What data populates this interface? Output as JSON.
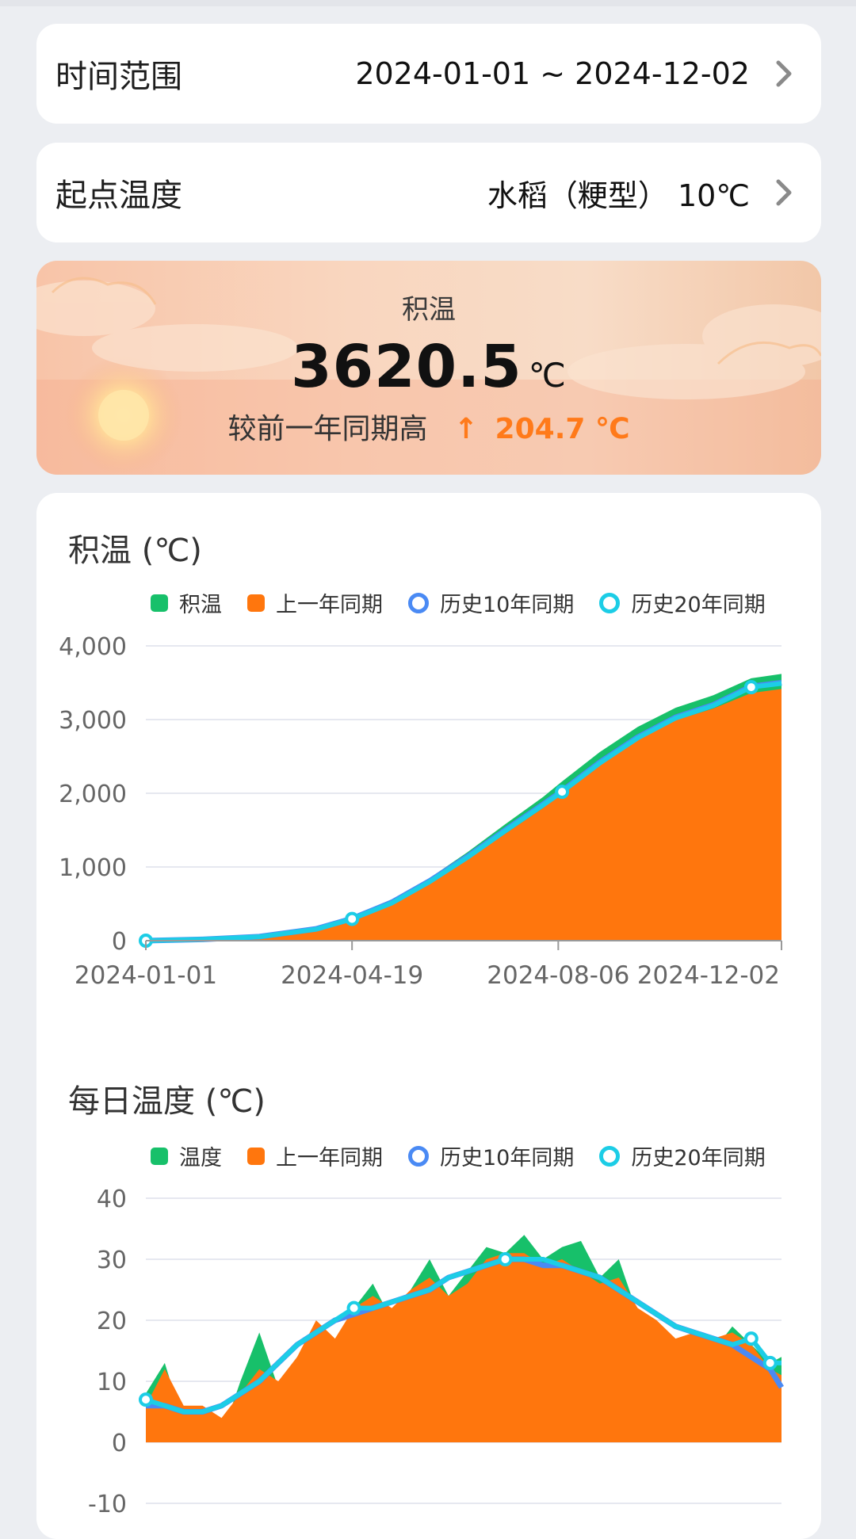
{
  "filters": {
    "time_range": {
      "label": "时间范围",
      "value": "2024-01-01 ~ 2024-12-02"
    },
    "base_temp": {
      "label": "起点温度",
      "value": "水稻（粳型） 10℃"
    }
  },
  "summary": {
    "title": "积温",
    "value": "3620.5",
    "unit": "℃",
    "compare_text": "较前一年同期高",
    "arrow": "↑",
    "delta": "204.7 ℃",
    "accent_color": "#ff7a1a"
  },
  "colors": {
    "green": "#17c06a",
    "orange": "#ff760d",
    "blue10": "#4a8af4",
    "cyan20": "#1ccde6"
  },
  "chart1": {
    "title": "积温 (℃)",
    "legend": [
      "积温",
      "上一年同期",
      "历史10年同期",
      "历史20年同期"
    ]
  },
  "chart2": {
    "title": "每日温度 (℃)",
    "legend": [
      "温度",
      "上一年同期",
      "历史10年同期",
      "历史20年同期"
    ]
  },
  "chart_data": [
    {
      "type": "area",
      "title": "积温 (℃)",
      "x_ticks": [
        "2024-01-01",
        "2024-04-19",
        "2024-08-06",
        "2024-12-02"
      ],
      "x_range": [
        0,
        336
      ],
      "y_ticks": [
        "4,000",
        "3,000",
        "2,000",
        "1,000",
        "0"
      ],
      "ylim": [
        0,
        4000
      ],
      "series": [
        {
          "name": "积温",
          "x": [
            0,
            30,
            60,
            90,
            109,
            130,
            150,
            170,
            190,
            210,
            220,
            240,
            260,
            280,
            300,
            320,
            336
          ],
          "values": [
            0,
            20,
            60,
            170,
            330,
            560,
            850,
            1200,
            1580,
            1950,
            2160,
            2560,
            2900,
            3160,
            3330,
            3560,
            3620
          ]
        },
        {
          "name": "上一年同期",
          "x": [
            0,
            30,
            60,
            90,
            109,
            130,
            150,
            170,
            190,
            210,
            220,
            240,
            260,
            280,
            300,
            320,
            336
          ],
          "values": [
            0,
            15,
            50,
            150,
            280,
            490,
            770,
            1100,
            1450,
            1800,
            2000,
            2380,
            2720,
            2990,
            3150,
            3360,
            3415
          ]
        },
        {
          "name": "历史10年同期",
          "x": [
            0,
            30,
            60,
            90,
            109,
            130,
            150,
            170,
            190,
            210,
            220,
            240,
            260,
            280,
            300,
            320,
            336
          ],
          "values": [
            0,
            18,
            55,
            160,
            300,
            520,
            810,
            1140,
            1500,
            1850,
            2030,
            2420,
            2760,
            3030,
            3200,
            3450,
            3500
          ]
        },
        {
          "name": "历史20年同期",
          "x": [
            0,
            30,
            60,
            90,
            109,
            130,
            150,
            170,
            190,
            210,
            220,
            240,
            260,
            280,
            300,
            320,
            336
          ],
          "values": [
            0,
            17,
            52,
            155,
            295,
            510,
            800,
            1130,
            1490,
            1840,
            2020,
            2410,
            2750,
            3020,
            3190,
            3440,
            3490
          ]
        }
      ],
      "grid": true,
      "legend_position": "top"
    },
    {
      "type": "area",
      "title": "每日温度 (℃)",
      "y_ticks": [
        "40",
        "30",
        "20",
        "10",
        "0",
        "-10"
      ],
      "ylim": [
        -10,
        40
      ],
      "x_range": [
        0,
        336
      ],
      "series": [
        {
          "name": "温度",
          "x": [
            0,
            10,
            20,
            30,
            40,
            50,
            60,
            70,
            80,
            90,
            100,
            110,
            120,
            130,
            140,
            150,
            160,
            170,
            180,
            190,
            200,
            210,
            220,
            230,
            240,
            250,
            260,
            270,
            280,
            290,
            300,
            310,
            320,
            330,
            336
          ],
          "values": [
            8,
            13,
            3,
            5,
            1,
            10,
            18,
            9,
            14,
            18,
            15,
            22,
            26,
            20,
            25,
            30,
            24,
            28,
            32,
            31,
            34,
            30,
            32,
            33,
            27,
            30,
            21,
            18,
            14,
            17,
            15,
            19,
            16,
            13,
            14
          ]
        },
        {
          "name": "上一年同期",
          "x": [
            0,
            10,
            20,
            30,
            40,
            50,
            60,
            70,
            80,
            90,
            100,
            110,
            120,
            130,
            140,
            150,
            160,
            170,
            180,
            190,
            200,
            210,
            220,
            230,
            240,
            250,
            260,
            270,
            280,
            290,
            300,
            310,
            320,
            330,
            336
          ],
          "values": [
            6,
            12,
            6,
            6,
            4,
            8,
            12,
            10,
            14,
            20,
            17,
            22,
            24,
            22,
            25,
            27,
            24,
            26,
            30,
            31,
            31,
            29,
            30,
            28,
            26,
            27,
            22,
            20,
            17,
            18,
            17,
            18,
            16,
            12,
            11
          ]
        },
        {
          "name": "历史10年同期",
          "x": [
            0,
            10,
            20,
            30,
            40,
            50,
            60,
            70,
            80,
            90,
            100,
            110,
            120,
            130,
            140,
            150,
            160,
            170,
            180,
            190,
            200,
            210,
            220,
            230,
            240,
            250,
            260,
            270,
            280,
            290,
            300,
            310,
            320,
            330,
            336
          ],
          "values": [
            6,
            6,
            5,
            5,
            6,
            8,
            10,
            13,
            16,
            18,
            20,
            21,
            22,
            23,
            24,
            25,
            27,
            28,
            29,
            30,
            30,
            29,
            29,
            28,
            27,
            25,
            23,
            21,
            19,
            18,
            17,
            16,
            14,
            12,
            9
          ]
        },
        {
          "name": "历史20年同期",
          "x": [
            0,
            10,
            20,
            30,
            40,
            50,
            60,
            70,
            80,
            90,
            100,
            110,
            120,
            130,
            140,
            150,
            160,
            170,
            180,
            190,
            200,
            210,
            220,
            230,
            240,
            250,
            260,
            270,
            280,
            290,
            300,
            310,
            320,
            330,
            336
          ],
          "values": [
            7,
            6,
            5,
            5,
            6,
            8,
            10,
            13,
            16,
            18,
            20,
            22,
            22,
            23,
            24,
            25,
            27,
            28,
            29,
            30,
            30,
            30,
            29,
            28,
            27,
            25,
            23,
            21,
            19,
            18,
            17,
            16,
            17,
            13,
            13
          ]
        }
      ],
      "grid": true,
      "legend_position": "top"
    }
  ]
}
